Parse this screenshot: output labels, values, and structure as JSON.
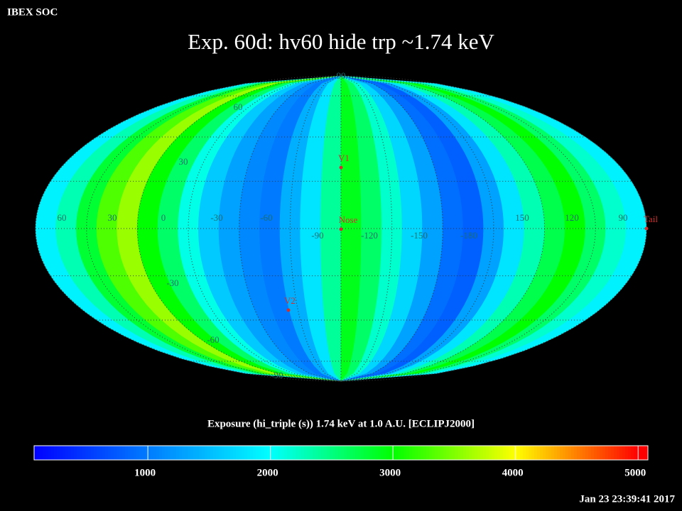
{
  "header": {
    "label": "IBEX SOC",
    "title": "Exp.   60d: hv60 hide trp ~1.74 keV"
  },
  "map": {
    "longitude_labels": [
      "60",
      "30",
      "0",
      "-30",
      "-60",
      "-90",
      "-120",
      "-150",
      "-180",
      "150",
      "120",
      "90"
    ],
    "latitude_labels": [
      "90",
      "60",
      "30",
      "-30",
      "-60",
      "-90"
    ],
    "markers": [
      {
        "label": "V1",
        "color": "#d03030"
      },
      {
        "label": "Nose",
        "color": "#d03030"
      },
      {
        "label": "V2",
        "color": "#d03030"
      },
      {
        "label": "Tail",
        "color": "#d03030"
      }
    ],
    "column_values": [
      1900,
      2300,
      2800,
      3300,
      3600,
      3000,
      2600,
      2100,
      1600,
      1300,
      1100,
      1000,
      1400,
      1800,
      2400,
      2900,
      2600,
      2200,
      1700,
      1300,
      900,
      800,
      1300,
      1800,
      2300,
      2700,
      3000,
      2600,
      2200,
      1900
    ]
  },
  "colorbar": {
    "title": "Exposure (hi_triple (s))  1.74 keV at 1.0 A.U. [ECLIPJ2000]",
    "range": [
      72,
      5080
    ],
    "ticks": [
      1000,
      2000,
      3000,
      4000,
      5000
    ],
    "colors": [
      "#0000ff",
      "#00ffff",
      "#00ff00",
      "#ffff00",
      "#ff0000"
    ],
    "stops": [
      72,
      2000,
      3000,
      4000,
      5000
    ]
  },
  "footer": {
    "timestamp": "Jan 23 23:39:41 2017"
  }
}
